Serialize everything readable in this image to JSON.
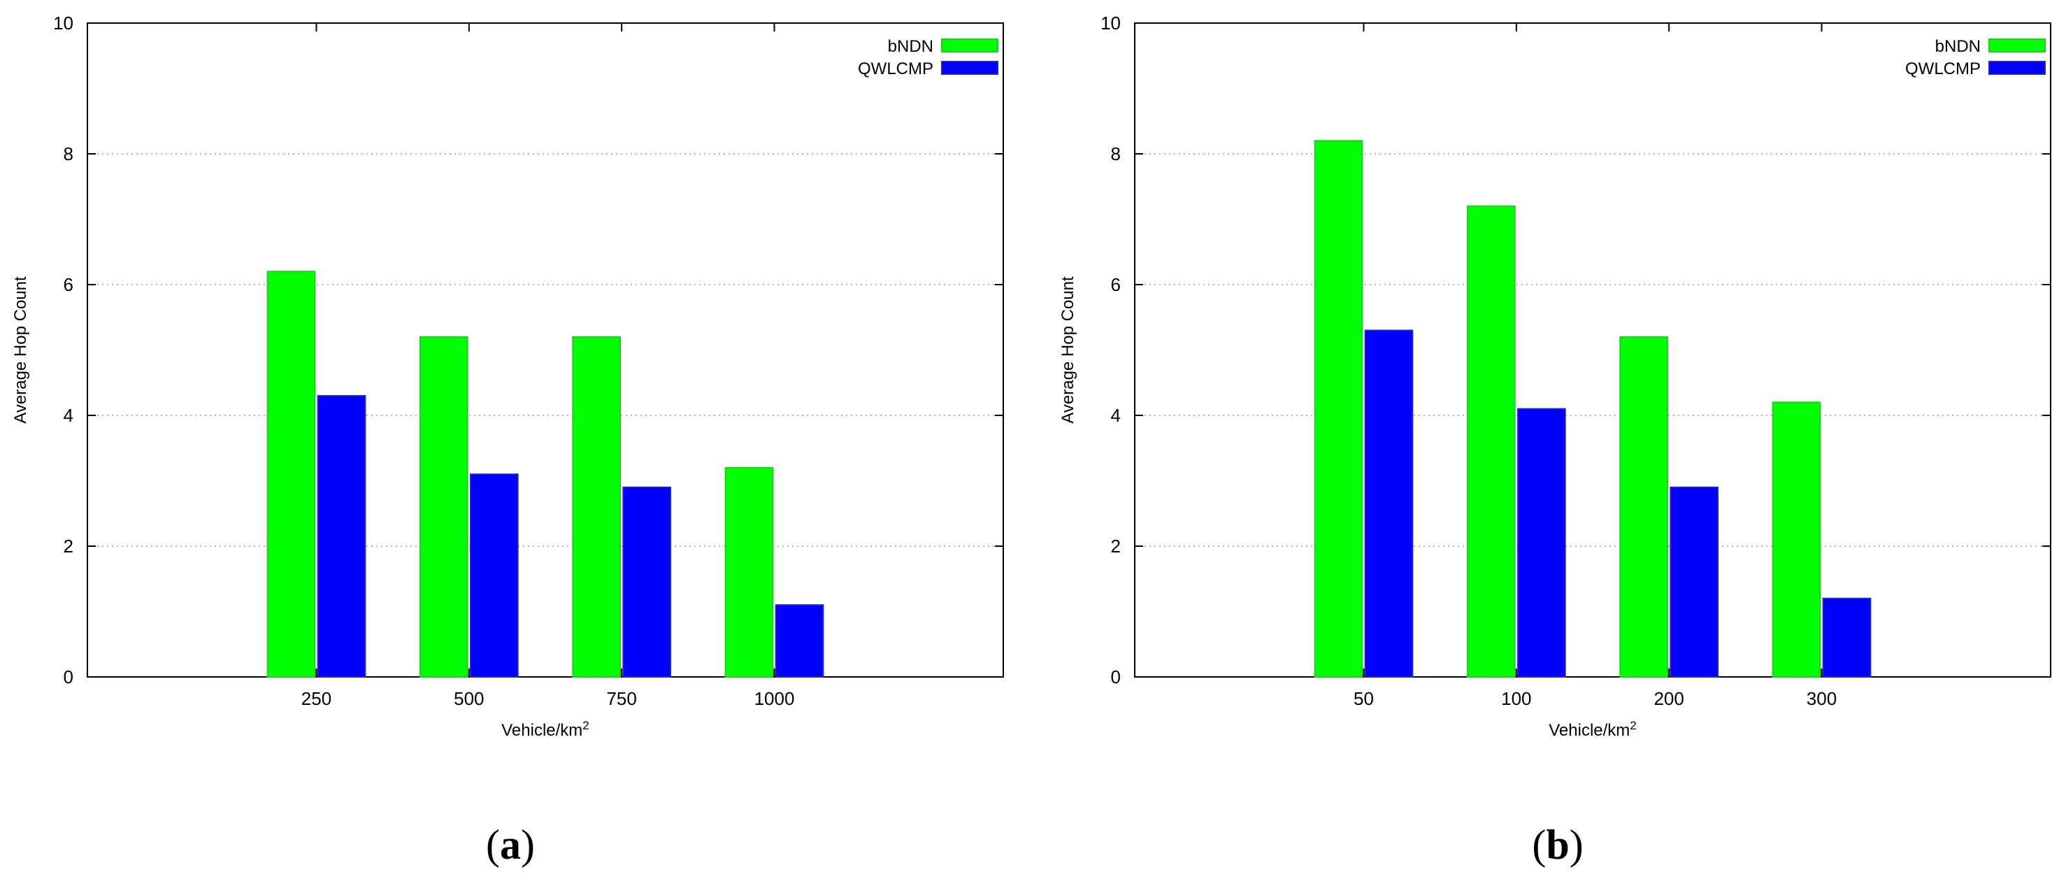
{
  "chart_data": [
    {
      "type": "bar",
      "panel_label": "a",
      "categories": [
        "250",
        "500",
        "750",
        "1000"
      ],
      "series": [
        {
          "name": "bNDN",
          "color": "#00ff00",
          "values": [
            6.2,
            5.2,
            5.2,
            3.2
          ]
        },
        {
          "name": "QWLCMP",
          "color": "#0000ff",
          "values": [
            4.3,
            3.1,
            2.9,
            1.1
          ]
        }
      ],
      "title": "",
      "xlabel": "Vehicle/km",
      "xlabel_sup": "2",
      "ylabel": "Average Hop Count",
      "ylim": [
        0,
        10
      ],
      "yticks": [
        "0",
        "2",
        "4",
        "6",
        "8",
        "10"
      ],
      "grid": true,
      "legend": "top-right"
    },
    {
      "type": "bar",
      "panel_label": "b",
      "categories": [
        "50",
        "100",
        "200",
        "300"
      ],
      "series": [
        {
          "name": "bNDN",
          "color": "#00ff00",
          "values": [
            8.2,
            7.2,
            5.2,
            4.2
          ]
        },
        {
          "name": "QWLCMP",
          "color": "#0000ff",
          "values": [
            5.3,
            4.1,
            2.9,
            1.2
          ]
        }
      ],
      "title": "",
      "xlabel": "Vehicle/km",
      "xlabel_sup": "2",
      "ylabel": "Average Hop Count",
      "ylim": [
        0,
        10
      ],
      "yticks": [
        "0",
        "2",
        "4",
        "6",
        "8",
        "10"
      ],
      "grid": true,
      "legend": "top-right"
    }
  ]
}
